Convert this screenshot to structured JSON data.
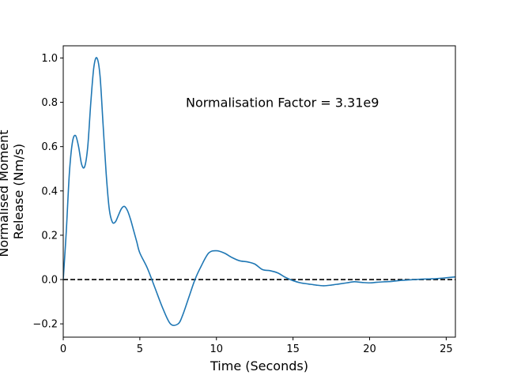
{
  "chart_data": {
    "type": "line",
    "xlabel": "Time (Seconds)",
    "ylabel_lines": [
      "Normalised Moment",
      "Release (Nm/s)"
    ],
    "annotation": "Normalisation Factor = 3.31e9",
    "xlim": [
      0,
      25.6
    ],
    "ylim": [
      -0.26,
      1.055
    ],
    "x_ticks": [
      0,
      5,
      10,
      15,
      20,
      25
    ],
    "y_ticks": [
      -0.2,
      0.0,
      0.2,
      0.4,
      0.6,
      0.8,
      1.0
    ],
    "x_tick_labels": [
      "0",
      "5",
      "10",
      "15",
      "20",
      "25"
    ],
    "y_tick_labels": [
      "−0.2",
      "0.0",
      "0.2",
      "0.4",
      "0.6",
      "0.8",
      "1.0"
    ],
    "grid": false,
    "line_color": "#1f77b4",
    "reference_line": {
      "y": 0.0,
      "style": "dashed",
      "color": "#000000"
    },
    "series": [
      {
        "x": [
          0,
          0.2,
          0.4,
          0.6,
          0.8,
          1.0,
          1.2,
          1.4,
          1.6,
          1.8,
          2.0,
          2.2,
          2.4,
          2.6,
          2.8,
          3.0,
          3.2,
          3.4,
          3.6,
          3.8,
          4.0,
          4.2,
          4.4,
          4.6,
          4.8,
          5.0,
          5.5,
          6.0,
          6.5,
          7.0,
          7.5,
          7.8,
          8.2,
          8.6,
          9.0,
          9.5,
          10.0,
          10.5,
          11.0,
          11.5,
          12.0,
          12.5,
          13.0,
          13.5,
          14.0,
          14.5,
          15.0,
          15.5,
          16.0,
          16.5,
          17.0,
          17.5,
          18.0,
          18.5,
          19.0,
          19.5,
          20.0,
          20.5,
          21.0,
          21.5,
          22.0,
          22.5,
          23.0,
          23.5,
          24.0,
          24.5,
          25.0,
          25.6
        ],
        "y": [
          0.0,
          0.22,
          0.48,
          0.62,
          0.65,
          0.6,
          0.52,
          0.51,
          0.6,
          0.8,
          0.96,
          1.0,
          0.92,
          0.7,
          0.48,
          0.32,
          0.26,
          0.26,
          0.29,
          0.32,
          0.33,
          0.31,
          0.27,
          0.22,
          0.17,
          0.12,
          0.05,
          -0.04,
          -0.13,
          -0.2,
          -0.2,
          -0.16,
          -0.08,
          0.0,
          0.06,
          0.12,
          0.13,
          0.12,
          0.1,
          0.085,
          0.08,
          0.07,
          0.045,
          0.04,
          0.03,
          0.01,
          -0.005,
          -0.015,
          -0.02,
          -0.025,
          -0.028,
          -0.025,
          -0.02,
          -0.015,
          -0.01,
          -0.013,
          -0.015,
          -0.012,
          -0.01,
          -0.008,
          -0.004,
          -0.002,
          0.0,
          0.002,
          0.003,
          0.005,
          0.008,
          0.012
        ]
      }
    ]
  }
}
